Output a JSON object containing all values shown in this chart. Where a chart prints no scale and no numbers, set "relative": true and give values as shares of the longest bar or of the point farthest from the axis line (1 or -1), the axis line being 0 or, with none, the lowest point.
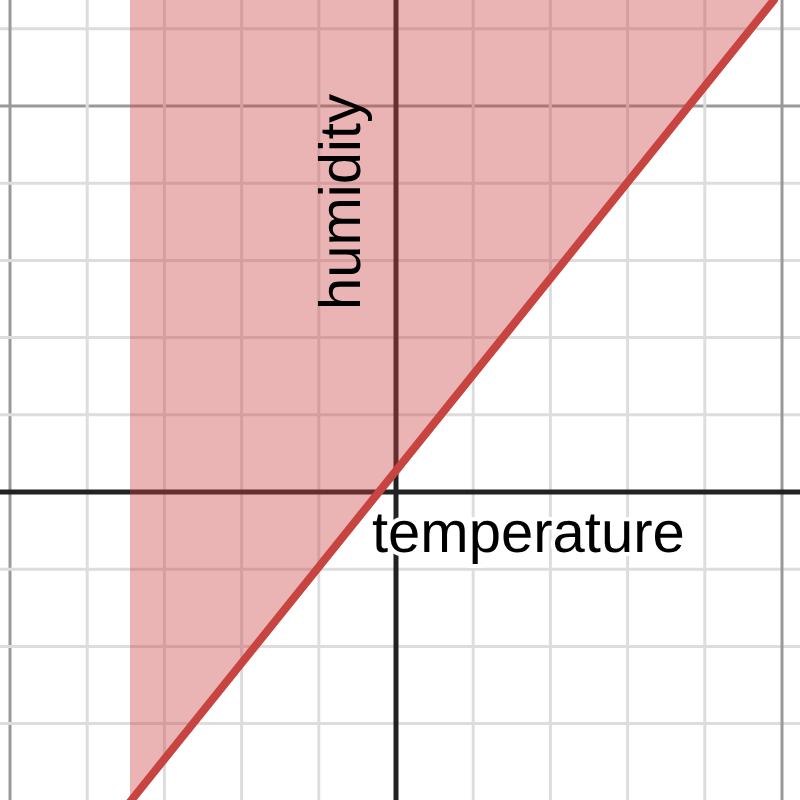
{
  "chart_data": {
    "type": "line",
    "relative": true,
    "categories": [
      null,
      null
    ],
    "xlabel": "temperature",
    "ylabel": "humidity",
    "grid": true,
    "series": [
      {
        "color": "#c74440",
        "values": [
          -0.63,
          1
        ],
        "lower": [
          -0.63,
          1
        ],
        "upper": [
          1,
          1
        ]
      }
    ]
  }
}
